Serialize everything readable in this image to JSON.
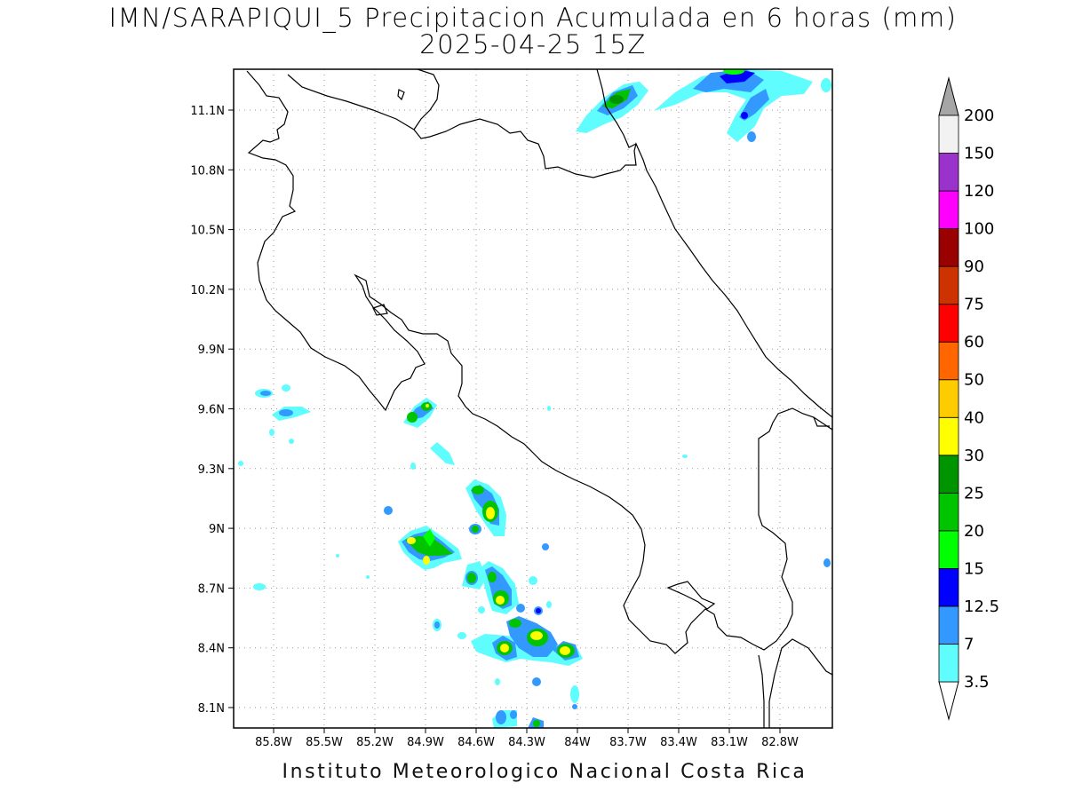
{
  "title_line1": "IMN/SARAPIQUI_5 Precipitacion Acumulada en 6 horas (mm)",
  "title_line2": "2025-04-25 15Z",
  "credit": "Instituto Meteorologico Nacional Costa Rica",
  "map": {
    "lon_labels": [
      "85.8W",
      "85.5W",
      "85.2W",
      "84.9W",
      "84.6W",
      "84.3W",
      "84W",
      "83.7W",
      "83.4W",
      "83.1W",
      "82.8W"
    ],
    "lat_labels": [
      "11.1N",
      "10.8N",
      "10.5N",
      "10.2N",
      "9.9N",
      "9.6N",
      "9.3N",
      "9N",
      "8.7N",
      "8.4N",
      "8.1N"
    ]
  },
  "legend": {
    "labels": [
      "3.5",
      "7",
      "12.5",
      "15",
      "20",
      "25",
      "30",
      "40",
      "50",
      "60",
      "75",
      "90",
      "100",
      "120",
      "150",
      "200"
    ],
    "colors": [
      "#ffffff",
      "#5ffdfd",
      "#3399ff",
      "#0000ff",
      "#00ff00",
      "#00c400",
      "#009400",
      "#ffff00",
      "#ffcc00",
      "#ff6600",
      "#ff0000",
      "#cc3300",
      "#990000",
      "#ff00ff",
      "#9933cc",
      "#f2f2f2",
      "#a6a6a6"
    ]
  }
}
